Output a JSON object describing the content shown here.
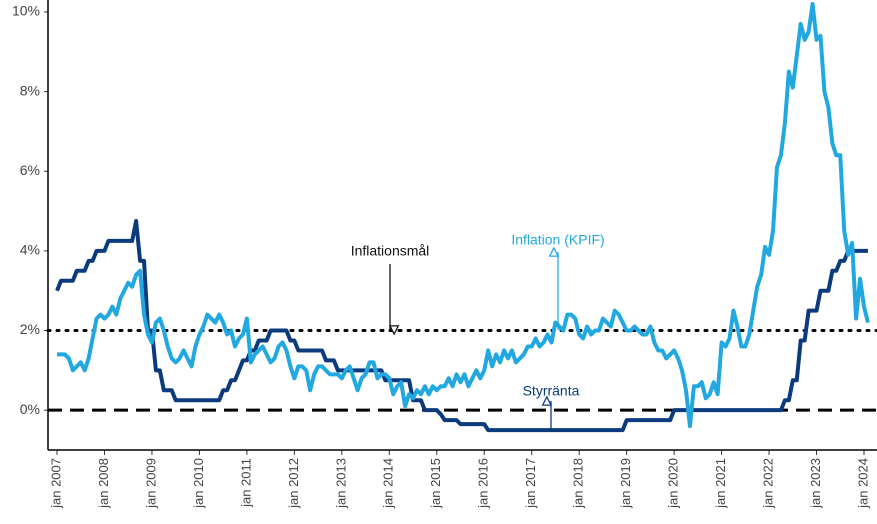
{
  "chart_data": {
    "type": "line",
    "x": [
      "2007-01",
      "2007-02",
      "2007-03",
      "2007-04",
      "2007-05",
      "2007-06",
      "2007-07",
      "2007-08",
      "2007-09",
      "2007-10",
      "2007-11",
      "2007-12",
      "2008-01",
      "2008-02",
      "2008-03",
      "2008-04",
      "2008-05",
      "2008-06",
      "2008-07",
      "2008-08",
      "2008-09",
      "2008-10",
      "2008-11",
      "2008-12",
      "2009-01",
      "2009-02",
      "2009-03",
      "2009-04",
      "2009-05",
      "2009-06",
      "2009-07",
      "2009-08",
      "2009-09",
      "2009-10",
      "2009-11",
      "2009-12",
      "2010-01",
      "2010-02",
      "2010-03",
      "2010-04",
      "2010-05",
      "2010-06",
      "2010-07",
      "2010-08",
      "2010-09",
      "2010-10",
      "2010-11",
      "2010-12",
      "2011-01",
      "2011-02",
      "2011-03",
      "2011-04",
      "2011-05",
      "2011-06",
      "2011-07",
      "2011-08",
      "2011-09",
      "2011-10",
      "2011-11",
      "2011-12",
      "2012-01",
      "2012-02",
      "2012-03",
      "2012-04",
      "2012-05",
      "2012-06",
      "2012-07",
      "2012-08",
      "2012-09",
      "2012-10",
      "2012-11",
      "2012-12",
      "2013-01",
      "2013-02",
      "2013-03",
      "2013-04",
      "2013-05",
      "2013-06",
      "2013-07",
      "2013-08",
      "2013-09",
      "2013-10",
      "2013-11",
      "2013-12",
      "2014-01",
      "2014-02",
      "2014-03",
      "2014-04",
      "2014-05",
      "2014-06",
      "2014-07",
      "2014-08",
      "2014-09",
      "2014-10",
      "2014-11",
      "2014-12",
      "2015-01",
      "2015-02",
      "2015-03",
      "2015-04",
      "2015-05",
      "2015-06",
      "2015-07",
      "2015-08",
      "2015-09",
      "2015-10",
      "2015-11",
      "2015-12",
      "2016-01",
      "2016-02",
      "2016-03",
      "2016-04",
      "2016-05",
      "2016-06",
      "2016-07",
      "2016-08",
      "2016-09",
      "2016-10",
      "2016-11",
      "2016-12",
      "2017-01",
      "2017-02",
      "2017-03",
      "2017-04",
      "2017-05",
      "2017-06",
      "2017-07",
      "2017-08",
      "2017-09",
      "2017-10",
      "2017-11",
      "2017-12",
      "2018-01",
      "2018-02",
      "2018-03",
      "2018-04",
      "2018-05",
      "2018-06",
      "2018-07",
      "2018-08",
      "2018-09",
      "2018-10",
      "2018-11",
      "2018-12",
      "2019-01",
      "2019-02",
      "2019-03",
      "2019-04",
      "2019-05",
      "2019-06",
      "2019-07",
      "2019-08",
      "2019-09",
      "2019-10",
      "2019-11",
      "2019-12",
      "2020-01",
      "2020-02",
      "2020-03",
      "2020-04",
      "2020-05",
      "2020-06",
      "2020-07",
      "2020-08",
      "2020-09",
      "2020-10",
      "2020-11",
      "2020-12",
      "2021-01",
      "2021-02",
      "2021-03",
      "2021-04",
      "2021-05",
      "2021-06",
      "2021-07",
      "2021-08",
      "2021-09",
      "2021-10",
      "2021-11",
      "2021-12",
      "2022-01",
      "2022-02",
      "2022-03",
      "2022-04",
      "2022-05",
      "2022-06",
      "2022-07",
      "2022-08",
      "2022-09",
      "2022-10",
      "2022-11",
      "2022-12",
      "2023-01",
      "2023-02",
      "2023-03",
      "2023-04",
      "2023-05",
      "2023-06",
      "2023-07",
      "2023-08",
      "2023-09",
      "2023-10",
      "2023-11",
      "2023-12",
      "2024-01",
      "2024-02"
    ],
    "series": [
      {
        "name": "Inflation (KPIF)",
        "color": "#22a8e0",
        "values": [
          1.4,
          1.4,
          1.4,
          1.3,
          1.0,
          1.1,
          1.2,
          1.0,
          1.3,
          1.8,
          2.3,
          2.4,
          2.3,
          2.4,
          2.6,
          2.4,
          2.8,
          3.0,
          3.2,
          3.1,
          3.4,
          3.5,
          2.4,
          1.9,
          1.7,
          2.2,
          2.3,
          2.0,
          1.6,
          1.3,
          1.2,
          1.3,
          1.5,
          1.3,
          1.1,
          1.6,
          1.9,
          2.1,
          2.4,
          2.3,
          2.2,
          2.4,
          2.2,
          1.9,
          2.0,
          1.6,
          1.8,
          1.9,
          2.3,
          1.2,
          1.4,
          1.5,
          1.6,
          1.4,
          1.2,
          1.3,
          1.6,
          1.7,
          1.5,
          1.1,
          0.8,
          1.1,
          1.1,
          1.0,
          0.5,
          0.9,
          1.1,
          1.1,
          1.0,
          0.9,
          0.9,
          0.9,
          0.8,
          1.0,
          1.1,
          0.8,
          0.5,
          0.8,
          0.9,
          1.2,
          1.2,
          0.8,
          0.9,
          0.9,
          0.8,
          0.4,
          0.6,
          0.7,
          0.1,
          0.4,
          0.3,
          0.5,
          0.4,
          0.6,
          0.4,
          0.6,
          0.5,
          0.6,
          0.6,
          0.8,
          0.6,
          0.9,
          0.7,
          0.9,
          0.6,
          0.8,
          1.0,
          0.8,
          1.0,
          1.5,
          1.1,
          1.4,
          1.2,
          1.5,
          1.3,
          1.5,
          1.2,
          1.3,
          1.4,
          1.6,
          1.6,
          1.8,
          1.6,
          1.7,
          1.9,
          1.7,
          2.2,
          2.1,
          2.0,
          2.4,
          2.4,
          2.3,
          1.9,
          1.8,
          2.1,
          1.9,
          2.0,
          2.0,
          2.3,
          2.2,
          2.1,
          2.5,
          2.4,
          2.2,
          2.0,
          2.0,
          2.1,
          2.0,
          1.9,
          1.9,
          2.1,
          1.7,
          1.5,
          1.5,
          1.3,
          1.4,
          1.5,
          1.3,
          1.0,
          0.5,
          -0.4,
          0.6,
          0.6,
          0.7,
          0.3,
          0.4,
          0.7,
          0.4,
          1.7,
          1.6,
          1.8,
          2.5,
          2.1,
          1.6,
          1.6,
          1.9,
          2.5,
          3.1,
          3.4,
          4.1,
          3.9,
          4.5,
          6.1,
          6.4,
          7.2,
          8.5,
          8.1,
          8.9,
          9.7,
          9.3,
          9.5,
          10.2,
          9.3,
          9.4,
          8.0,
          7.6,
          6.7,
          6.4,
          6.4,
          4.5,
          3.9,
          4.2,
          2.3,
          3.3,
          2.6,
          2.2
        ]
      },
      {
        "name": "Styrränta",
        "color": "#0b3b7c",
        "values": [
          3.0,
          3.25,
          3.25,
          3.25,
          3.25,
          3.5,
          3.5,
          3.5,
          3.75,
          3.75,
          4.0,
          4.0,
          4.0,
          4.25,
          4.25,
          4.25,
          4.25,
          4.25,
          4.25,
          4.25,
          4.75,
          3.75,
          3.75,
          2.0,
          2.0,
          1.0,
          1.0,
          0.5,
          0.5,
          0.5,
          0.25,
          0.25,
          0.25,
          0.25,
          0.25,
          0.25,
          0.25,
          0.25,
          0.25,
          0.25,
          0.25,
          0.25,
          0.5,
          0.5,
          0.75,
          0.75,
          1.0,
          1.25,
          1.25,
          1.5,
          1.5,
          1.75,
          1.75,
          1.75,
          2.0,
          2.0,
          2.0,
          2.0,
          2.0,
          1.75,
          1.75,
          1.5,
          1.5,
          1.5,
          1.5,
          1.5,
          1.5,
          1.5,
          1.25,
          1.25,
          1.25,
          1.0,
          1.0,
          1.0,
          1.0,
          1.0,
          1.0,
          1.0,
          1.0,
          1.0,
          1.0,
          1.0,
          1.0,
          0.75,
          0.75,
          0.75,
          0.75,
          0.75,
          0.75,
          0.75,
          0.25,
          0.25,
          0.25,
          0.0,
          0.0,
          0.0,
          0.0,
          -0.1,
          -0.25,
          -0.25,
          -0.25,
          -0.25,
          -0.35,
          -0.35,
          -0.35,
          -0.35,
          -0.35,
          -0.35,
          -0.35,
          -0.5,
          -0.5,
          -0.5,
          -0.5,
          -0.5,
          -0.5,
          -0.5,
          -0.5,
          -0.5,
          -0.5,
          -0.5,
          -0.5,
          -0.5,
          -0.5,
          -0.5,
          -0.5,
          -0.5,
          -0.5,
          -0.5,
          -0.5,
          -0.5,
          -0.5,
          -0.5,
          -0.5,
          -0.5,
          -0.5,
          -0.5,
          -0.5,
          -0.5,
          -0.5,
          -0.5,
          -0.5,
          -0.5,
          -0.5,
          -0.5,
          -0.25,
          -0.25,
          -0.25,
          -0.25,
          -0.25,
          -0.25,
          -0.25,
          -0.25,
          -0.25,
          -0.25,
          -0.25,
          -0.25,
          0.0,
          0.0,
          0.0,
          0.0,
          0.0,
          0.0,
          0.0,
          0.0,
          0.0,
          0.0,
          0.0,
          0.0,
          0.0,
          0.0,
          0.0,
          0.0,
          0.0,
          0.0,
          0.0,
          0.0,
          0.0,
          0.0,
          0.0,
          0.0,
          0.0,
          0.0,
          0.0,
          0.0,
          0.25,
          0.25,
          0.75,
          0.75,
          1.75,
          1.75,
          2.5,
          2.5,
          2.5,
          3.0,
          3.0,
          3.0,
          3.5,
          3.5,
          3.75,
          3.75,
          4.0,
          4.0,
          4.0,
          4.0,
          4.0,
          4.0
        ]
      }
    ],
    "reference_lines": [
      {
        "value": 2,
        "style": "dotted"
      },
      {
        "value": 0,
        "style": "dashed"
      }
    ],
    "annotations": [
      "Inflationsmål",
      "Inflation (KPIF)",
      "Styrränta"
    ],
    "ylim": [
      -1,
      10.3
    ],
    "yticks": [
      {
        "value": 0,
        "label": "0%"
      },
      {
        "value": 2,
        "label": "2%"
      },
      {
        "value": 4,
        "label": "4%"
      },
      {
        "value": 6,
        "label": "6%"
      },
      {
        "value": 8,
        "label": "8%"
      },
      {
        "value": 10,
        "label": "10%"
      }
    ],
    "xticks": [
      {
        "value": "2007-01",
        "label": "jan 2007"
      },
      {
        "value": "2008-01",
        "label": "jan 2008"
      },
      {
        "value": "2009-01",
        "label": "jan 2009"
      },
      {
        "value": "2010-01",
        "label": "jan 2010"
      },
      {
        "value": "2011-01",
        "label": "jan 2011"
      },
      {
        "value": "2012-01",
        "label": "jan 2012"
      },
      {
        "value": "2013-01",
        "label": "jan 2013"
      },
      {
        "value": "2014-01",
        "label": "jan 2014"
      },
      {
        "value": "2015-01",
        "label": "jan 2015"
      },
      {
        "value": "2016-01",
        "label": "jan 2016"
      },
      {
        "value": "2017-01",
        "label": "jan 2017"
      },
      {
        "value": "2018-01",
        "label": "jan 2018"
      },
      {
        "value": "2019-01",
        "label": "jan 2019"
      },
      {
        "value": "2020-01",
        "label": "jan 2020"
      },
      {
        "value": "2021-01",
        "label": "jan 2021"
      },
      {
        "value": "2022-01",
        "label": "jan 2022"
      },
      {
        "value": "2023-01",
        "label": "jan 2023"
      },
      {
        "value": "2024-01",
        "label": "jan 2024"
      }
    ]
  }
}
